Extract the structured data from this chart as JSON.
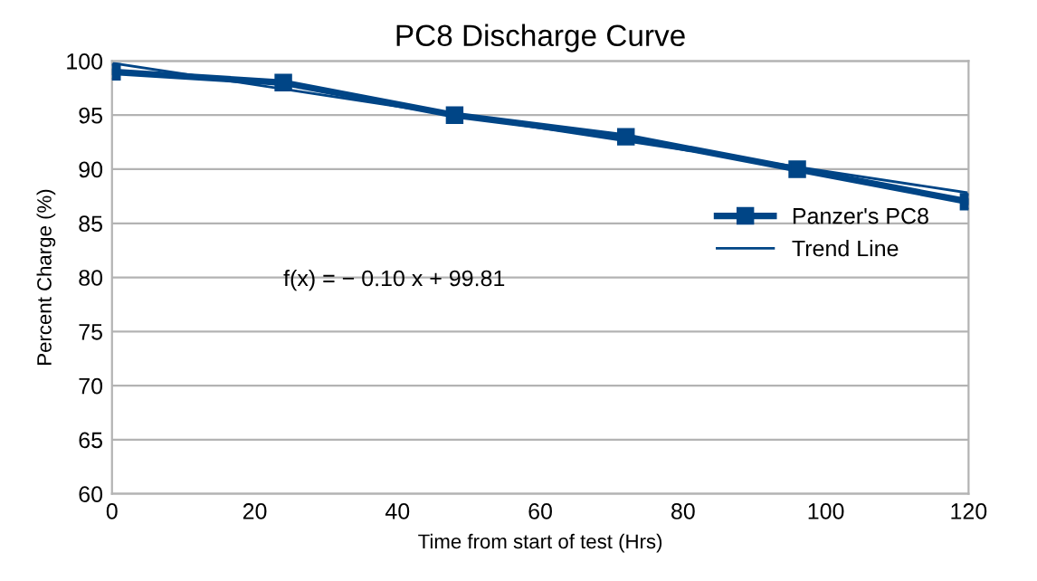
{
  "chart_data": {
    "type": "line",
    "title": "PC8 Discharge Curve",
    "xlabel": "Time from start of test (Hrs)",
    "ylabel": "Percent Charge (%)",
    "xlim": [
      0,
      120
    ],
    "xticks": [
      0,
      20,
      40,
      60,
      80,
      100,
      120
    ],
    "ylim": [
      60,
      100
    ],
    "yticks": [
      60,
      65,
      70,
      75,
      80,
      85,
      90,
      95,
      100
    ],
    "grid": "y",
    "legend": "right",
    "annotations": [
      "f(x) = − 0.10 x + 99.81"
    ],
    "series": [
      {
        "name": "Panzer's PC8",
        "color": "#004586",
        "x": [
          0,
          24,
          48,
          72,
          96,
          120
        ],
        "values": [
          99,
          98,
          95,
          93,
          90,
          87
        ],
        "marker": "square",
        "line_style": "solid"
      },
      {
        "name": "Trend Line",
        "color": "#004586",
        "x": [
          0,
          120
        ],
        "values": [
          99.81,
          87.81
        ],
        "marker": "none",
        "line_style": "solid"
      }
    ]
  }
}
